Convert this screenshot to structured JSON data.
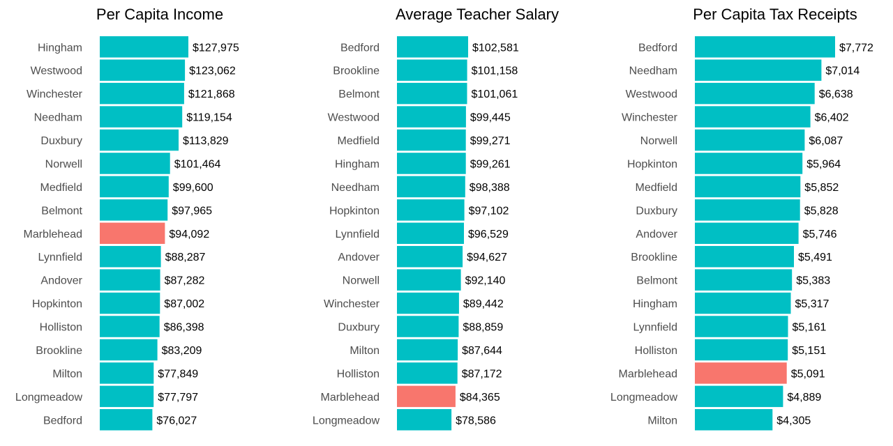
{
  "colors": {
    "default_bar": "#00bfc4",
    "highlight_bar": "#f8766d",
    "highlight_category": "Marblehead"
  },
  "chart_data": [
    {
      "type": "bar",
      "orientation": "horizontal",
      "title": "Per Capita Income",
      "categories": [
        "Hingham",
        "Westwood",
        "Winchester",
        "Needham",
        "Duxbury",
        "Norwell",
        "Medfield",
        "Belmont",
        "Marblehead",
        "Lynnfield",
        "Andover",
        "Hopkinton",
        "Holliston",
        "Brookline",
        "Milton",
        "Longmeadow",
        "Bedford"
      ],
      "values": [
        127975,
        123062,
        121868,
        119154,
        113829,
        101464,
        99600,
        97965,
        94092,
        88287,
        87282,
        87002,
        86398,
        83209,
        77849,
        77797,
        76027
      ],
      "value_labels": [
        "$127,975",
        "$123,062",
        "$121,868",
        "$119,154",
        "$113,829",
        "$101,464",
        "$99,600",
        "$97,965",
        "$94,092",
        "$88,287",
        "$87,282",
        "$87,002",
        "$86,398",
        "$83,209",
        "$77,849",
        "$77,797",
        "$76,027"
      ],
      "grid": false
    },
    {
      "type": "bar",
      "orientation": "horizontal",
      "title": "Average Teacher Salary",
      "categories": [
        "Bedford",
        "Brookline",
        "Belmont",
        "Westwood",
        "Medfield",
        "Hingham",
        "Needham",
        "Hopkinton",
        "Lynnfield",
        "Andover",
        "Norwell",
        "Winchester",
        "Duxbury",
        "Milton",
        "Holliston",
        "Marblehead",
        "Longmeadow"
      ],
      "values": [
        102581,
        101158,
        101061,
        99445,
        99271,
        99261,
        98388,
        97102,
        96529,
        94627,
        92140,
        89442,
        88859,
        87644,
        87172,
        84365,
        78586
      ],
      "value_labels": [
        "$102,581",
        "$101,158",
        "$101,061",
        "$99,445",
        "$99,271",
        "$99,261",
        "$98,388",
        "$97,102",
        "$96,529",
        "$94,627",
        "$92,140",
        "$89,442",
        "$88,859",
        "$87,644",
        "$87,172",
        "$84,365",
        "$78,586"
      ],
      "grid": false
    },
    {
      "type": "bar",
      "orientation": "horizontal",
      "title": "Per Capita Tax Receipts",
      "categories": [
        "Bedford",
        "Needham",
        "Westwood",
        "Winchester",
        "Norwell",
        "Hopkinton",
        "Medfield",
        "Duxbury",
        "Andover",
        "Brookline",
        "Belmont",
        "Hingham",
        "Lynnfield",
        "Holliston",
        "Marblehead",
        "Longmeadow",
        "Milton"
      ],
      "values": [
        7772,
        7014,
        6638,
        6402,
        6087,
        5964,
        5852,
        5828,
        5746,
        5491,
        5383,
        5317,
        5161,
        5151,
        5091,
        4889,
        4305
      ],
      "value_labels": [
        "$7,772",
        "$7,014",
        "$6,638",
        "$6,402",
        "$6,087",
        "$5,964",
        "$5,852",
        "$5,828",
        "$5,746",
        "$5,491",
        "$5,383",
        "$5,317",
        "$5,161",
        "$5,151",
        "$5,091",
        "$4,889",
        "$4,305"
      ],
      "grid": false
    }
  ]
}
